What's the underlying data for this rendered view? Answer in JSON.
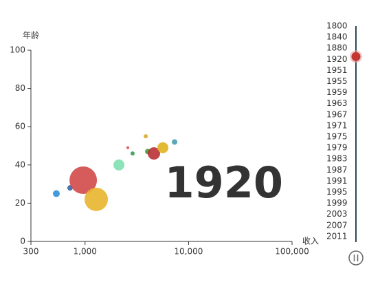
{
  "chart_data": {
    "type": "scatter",
    "x_label": "收入",
    "y_label": "年龄",
    "xscale": "log",
    "xlim": [
      300,
      100000
    ],
    "xticks": [
      300,
      {
        "value": 1000,
        "label": "1,000"
      },
      {
        "value": 10000,
        "label": "10,000"
      },
      {
        "value": 100000,
        "label": "100,000"
      }
    ],
    "ylim": [
      0,
      100
    ],
    "yticks": [
      0,
      20,
      40,
      60,
      80,
      100
    ],
    "x": [
      528,
      716,
      960,
      1283,
      2124,
      2590,
      2880,
      3856,
      4040,
      4630,
      5650,
      7330
    ],
    "values": [
      25,
      28,
      32,
      22,
      40,
      49,
      46,
      55,
      47,
      46,
      49,
      52
    ],
    "sizes": [
      5,
      4,
      20,
      17,
      8,
      2,
      3,
      3,
      4,
      9,
      8,
      4
    ],
    "colors": [
      "#2f8fd8",
      "#3566a8",
      "#d14a4a",
      "#e8b52c",
      "#7fe0b0",
      "#e04848",
      "#3a9a55",
      "#d9aa2a",
      "#3f9a3a",
      "#bb3037",
      "#e0b21f",
      "#4a9fb0"
    ],
    "timeline": {
      "labels": [
        1800,
        1840,
        1880,
        1920,
        1951,
        1955,
        1959,
        1963,
        1967,
        1971,
        1975,
        1979,
        1983,
        1987,
        1991,
        1995,
        1999,
        2003,
        2007,
        2011
      ],
      "current": 1920
    }
  }
}
